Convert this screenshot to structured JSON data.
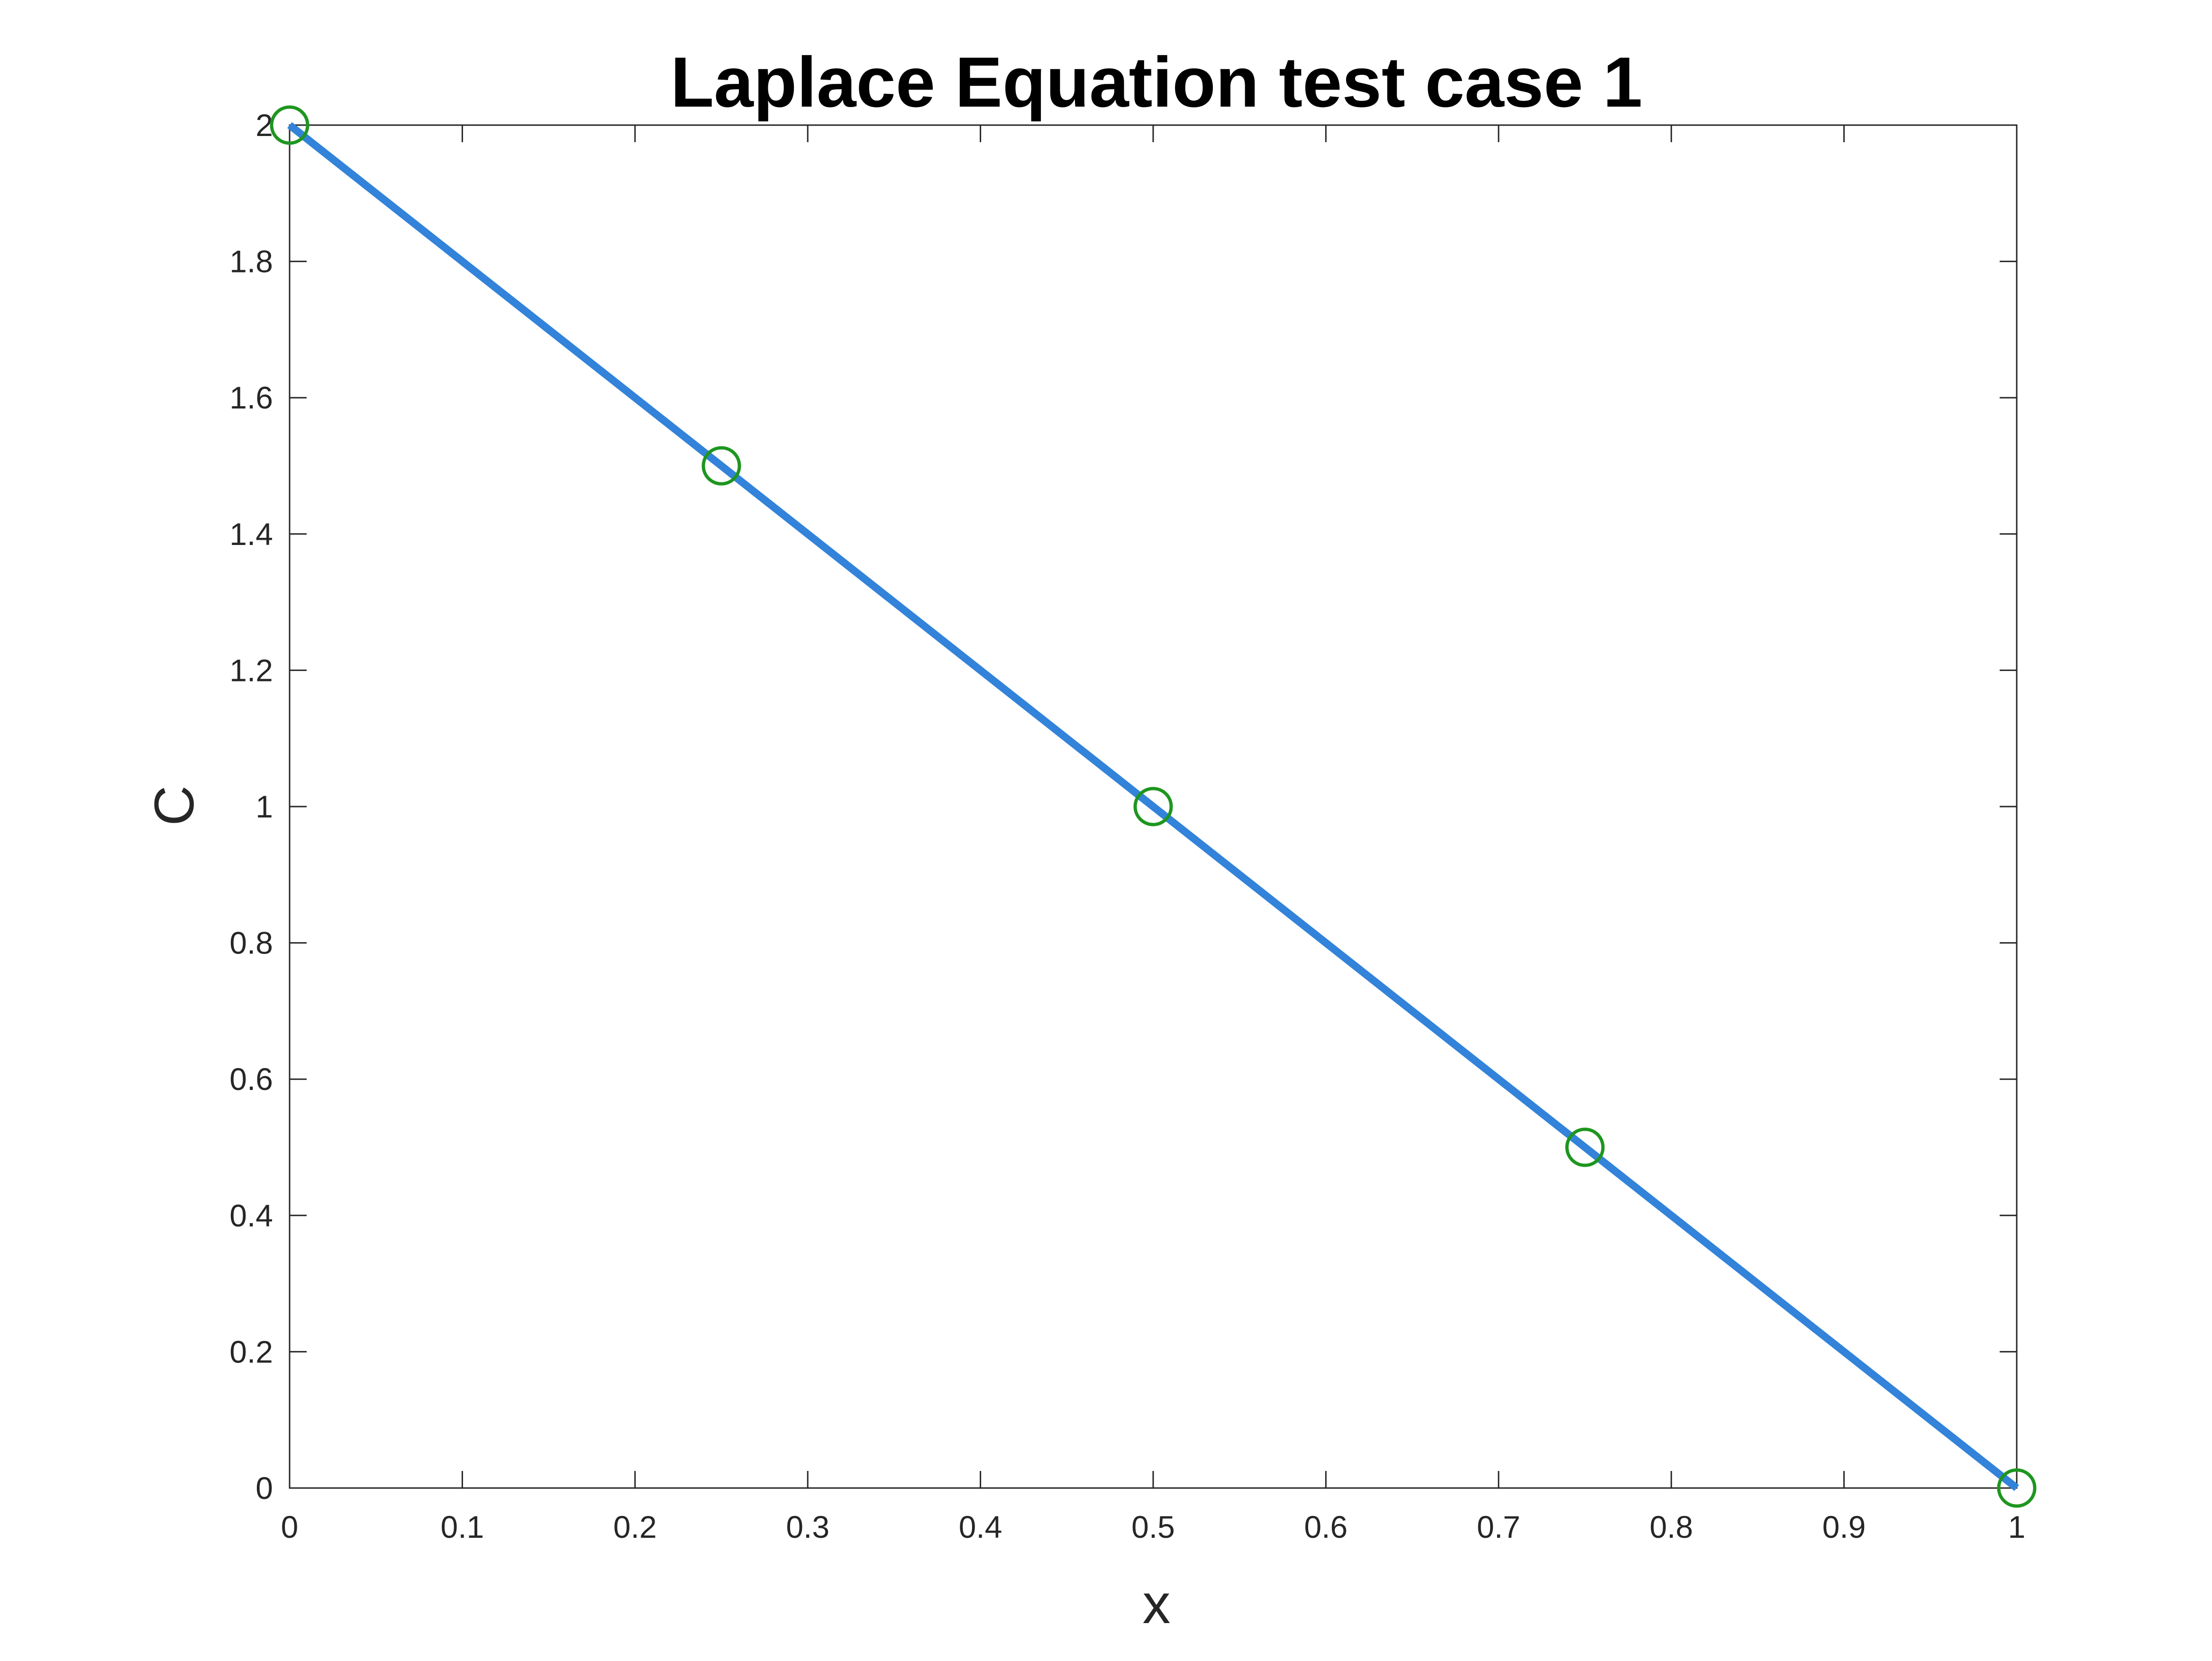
{
  "chart_data": {
    "type": "line",
    "title": "Laplace Equation test case 1",
    "xlabel": "x",
    "ylabel": "C",
    "xlim": [
      0,
      1
    ],
    "ylim": [
      0,
      2
    ],
    "x_ticks": [
      0,
      0.1,
      0.2,
      0.3,
      0.4,
      0.5,
      0.6,
      0.7,
      0.8,
      0.9,
      1
    ],
    "x_tick_labels": [
      "0",
      "0.1",
      "0.2",
      "0.3",
      "0.4",
      "0.5",
      "0.6",
      "0.7",
      "0.8",
      "0.9",
      "1"
    ],
    "y_ticks": [
      0,
      0.2,
      0.4,
      0.6,
      0.8,
      1,
      1.2,
      1.4,
      1.6,
      1.8,
      2
    ],
    "y_tick_labels": [
      "0",
      "0.2",
      "0.4",
      "0.6",
      "0.8",
      "1",
      "1.2",
      "1.4",
      "1.6",
      "1.8",
      "2"
    ],
    "grid": false,
    "legend": "none",
    "series": [
      {
        "style": "line",
        "color": "#3283d9",
        "x": [
          0,
          1
        ],
        "y": [
          2,
          0
        ]
      },
      {
        "style": "markers",
        "marker": "circle",
        "color": "#1e9620",
        "x": [
          0,
          0.25,
          0.5,
          0.75,
          1
        ],
        "y": [
          2,
          1.5,
          1,
          0.5,
          0
        ]
      }
    ]
  }
}
